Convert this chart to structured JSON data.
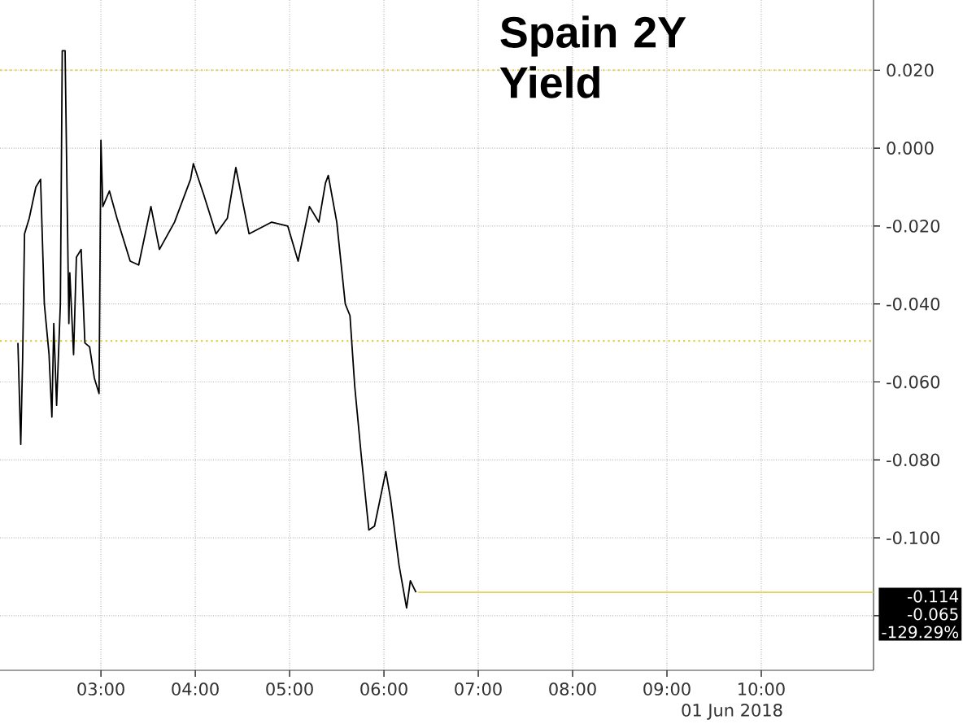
{
  "chart_data": {
    "type": "line",
    "title": "Spain 2Y Yield",
    "xlim": [
      1.93,
      11.19
    ],
    "ylim": [
      -0.134,
      0.038
    ],
    "xticks": [
      {
        "value": 3,
        "label": "03:00"
      },
      {
        "value": 4,
        "label": "04:00"
      },
      {
        "value": 5,
        "label": "05:00"
      },
      {
        "value": 6,
        "label": "06:00"
      },
      {
        "value": 7,
        "label": "07:00"
      },
      {
        "value": 8,
        "label": "08:00"
      },
      {
        "value": 9,
        "label": "09:00"
      },
      {
        "value": 10,
        "label": "10:00"
      }
    ],
    "yticks": [
      {
        "value": 0.02,
        "label": "0.020"
      },
      {
        "value": 0,
        "label": "0.000"
      },
      {
        "value": -0.02,
        "label": "-0.020"
      },
      {
        "value": -0.04,
        "label": "-0.040"
      },
      {
        "value": -0.06,
        "label": "-0.060"
      },
      {
        "value": -0.08,
        "label": "-0.080"
      },
      {
        "value": -0.1,
        "label": "-0.100"
      },
      {
        "value": -0.12,
        "label": null
      }
    ],
    "grid": true,
    "series": [
      {
        "color": "#000000",
        "x": [
          2.12,
          2.15,
          2.17,
          2.19,
          2.24,
          2.31,
          2.36,
          2.4,
          2.45,
          2.48,
          2.5,
          2.53,
          2.57,
          2.59,
          2.62,
          2.66,
          2.67,
          2.71,
          2.74,
          2.79,
          2.83,
          2.88,
          2.93,
          2.98,
          3.0,
          3.02,
          3.09,
          3.17,
          3.31,
          3.4,
          3.53,
          3.62,
          3.78,
          3.95,
          3.98,
          4.09,
          4.22,
          4.34,
          4.43,
          4.57,
          4.81,
          4.98,
          5.09,
          5.21,
          5.31,
          5.38,
          5.41,
          5.5,
          5.59,
          5.64,
          5.69,
          5.76,
          5.84,
          5.9,
          6.02,
          6.07,
          6.16,
          6.24,
          6.28,
          6.34
        ],
        "values": [
          -0.05,
          -0.076,
          -0.054,
          -0.022,
          -0.018,
          -0.01,
          -0.008,
          -0.04,
          -0.053,
          -0.069,
          -0.045,
          -0.066,
          -0.04,
          0.025,
          0.025,
          -0.045,
          -0.032,
          -0.053,
          -0.028,
          -0.026,
          -0.05,
          -0.051,
          -0.059,
          -0.063,
          0.002,
          -0.015,
          -0.011,
          -0.018,
          -0.029,
          -0.03,
          -0.015,
          -0.026,
          -0.019,
          -0.008,
          -0.004,
          -0.012,
          -0.022,
          -0.018,
          -0.005,
          -0.022,
          -0.019,
          -0.02,
          -0.029,
          -0.015,
          -0.019,
          -0.009,
          -0.007,
          -0.019,
          -0.04,
          -0.043,
          -0.061,
          -0.079,
          -0.098,
          -0.097,
          -0.083,
          -0.09,
          -0.107,
          -0.118,
          -0.111,
          -0.114
        ]
      },
      {
        "type": "line",
        "color": "#e3d35a",
        "x": [
          6.36,
          11.19
        ],
        "values": [
          -0.114,
          -0.114
        ]
      }
    ],
    "ref_lines": [
      {
        "axis": "y",
        "value": 0.02,
        "color": "#e3cf4a",
        "line_style": "dotted"
      },
      {
        "axis": "y",
        "value": -0.0495,
        "color": "#e3cf4a",
        "line_style": "dotted"
      }
    ],
    "annotations": [
      "-0.114",
      "-0.065",
      "-129.29%",
      "01 Jun 2018"
    ]
  }
}
